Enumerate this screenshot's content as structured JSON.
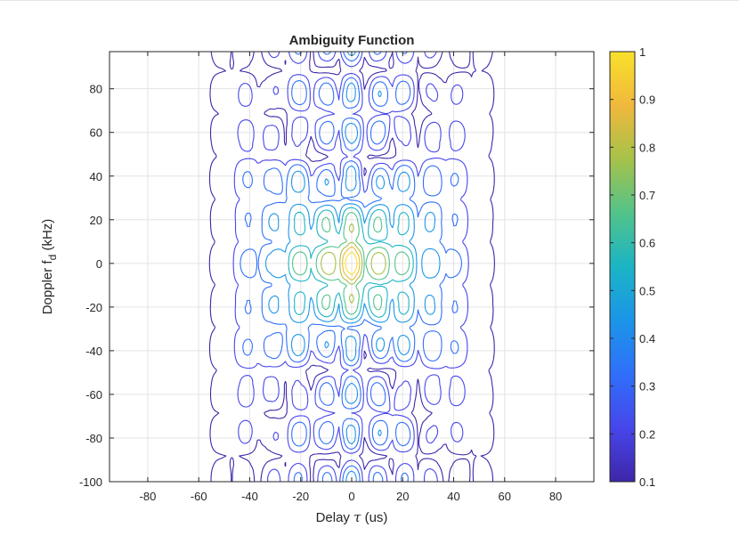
{
  "chart_data": {
    "type": "contour",
    "title": "Ambiguity Function",
    "xlabel": {
      "prefix": "Delay ",
      "symbol": "τ",
      "suffix": " (us)"
    },
    "ylabel": {
      "prefix": "Doppler f",
      "sub": "d",
      "suffix": " (kHz)"
    },
    "xlim": [
      -95,
      95
    ],
    "ylim": [
      -100,
      97
    ],
    "xticks": [
      -80,
      -60,
      -40,
      -20,
      0,
      20,
      40,
      60,
      80
    ],
    "yticks": [
      -100,
      -80,
      -60,
      -40,
      -20,
      0,
      20,
      40,
      60,
      80
    ],
    "grid": true,
    "colormap": "parula",
    "colorbar": {
      "limits": [
        0.1,
        1
      ],
      "ticks": [
        0.1,
        0.2,
        0.3,
        0.4,
        0.5,
        0.6,
        0.7,
        0.8,
        0.9,
        1
      ],
      "tick_labels": [
        "0.1",
        "0.2",
        "0.3",
        "0.4",
        "0.5",
        "0.6",
        "0.7",
        "0.8",
        "0.9",
        "1"
      ]
    },
    "levels": [
      0.1,
      0.2,
      0.3,
      0.4,
      0.5,
      0.6,
      0.7,
      0.8,
      0.9
    ],
    "level_colors": [
      "#3e26a8",
      "#4746eb",
      "#2f6ffa",
      "#1b95e8",
      "#1bb4c5",
      "#52c38a",
      "#a6c24a",
      "#f0b83c",
      "#f9e12b"
    ]
  }
}
